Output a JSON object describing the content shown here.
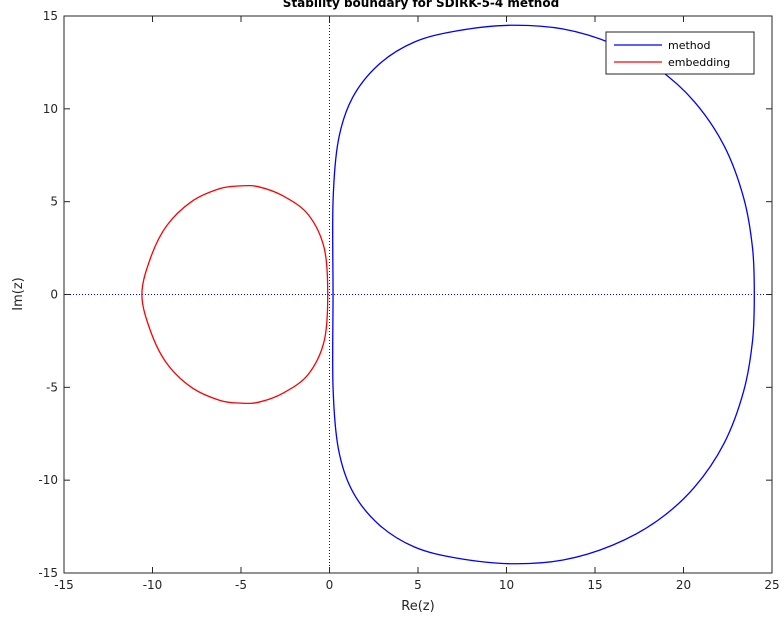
{
  "chart_data": {
    "type": "line",
    "title": "Stability boundary for SDIRK-5-4 method",
    "xlabel": "Re(z)",
    "ylabel": "Im(z)",
    "xlim": [
      -15,
      25
    ],
    "ylim": [
      -15,
      15
    ],
    "xticks": [
      -15,
      -10,
      -5,
      0,
      5,
      10,
      15,
      20,
      25
    ],
    "yticks": [
      -15,
      -10,
      -5,
      0,
      5,
      10,
      15
    ],
    "grid": false,
    "reference_lines": {
      "x": 0,
      "y": 0,
      "style": "dotted",
      "color": "#0000ff"
    },
    "legend": {
      "position": "top-right"
    },
    "series": [
      {
        "name": "method",
        "color": "#0000ff",
        "x": [
          0.2,
          0.2,
          0.5,
          1.3,
          2.8,
          4.8,
          7.2,
          10.2,
          13.2,
          16.0,
          18.5,
          20.6,
          22.3,
          23.4,
          23.9,
          24.0,
          23.9,
          23.4,
          22.3,
          20.6,
          18.5,
          16.0,
          13.2,
          10.2,
          7.2,
          4.8,
          2.8,
          1.3,
          0.5,
          0.2,
          0.2
        ],
        "y": [
          0,
          5.0,
          8.3,
          10.6,
          12.4,
          13.6,
          14.2,
          14.5,
          14.3,
          13.5,
          12.2,
          10.4,
          8.0,
          5.2,
          2.5,
          0,
          -2.5,
          -5.2,
          -8.0,
          -10.4,
          -12.2,
          -13.5,
          -14.3,
          -14.5,
          -14.2,
          -13.6,
          -12.4,
          -10.6,
          -8.3,
          -5.0,
          0
        ]
      },
      {
        "name": "embedding",
        "color": "#ff0000",
        "x": [
          -0.1,
          -0.3,
          -1.2,
          -2.6,
          -4.0,
          -5.0,
          -6.2,
          -7.8,
          -9.2,
          -10.1,
          -10.6,
          -10.1,
          -9.2,
          -7.8,
          -6.2,
          -5.0,
          -4.0,
          -2.6,
          -1.2,
          -0.3,
          -0.1
        ],
        "y": [
          0,
          2.5,
          4.3,
          5.3,
          5.8,
          5.85,
          5.7,
          5.0,
          3.7,
          2.0,
          0,
          -2.0,
          -3.7,
          -5.0,
          -5.7,
          -5.85,
          -5.8,
          -5.3,
          -4.3,
          -2.5,
          0
        ]
      }
    ]
  }
}
